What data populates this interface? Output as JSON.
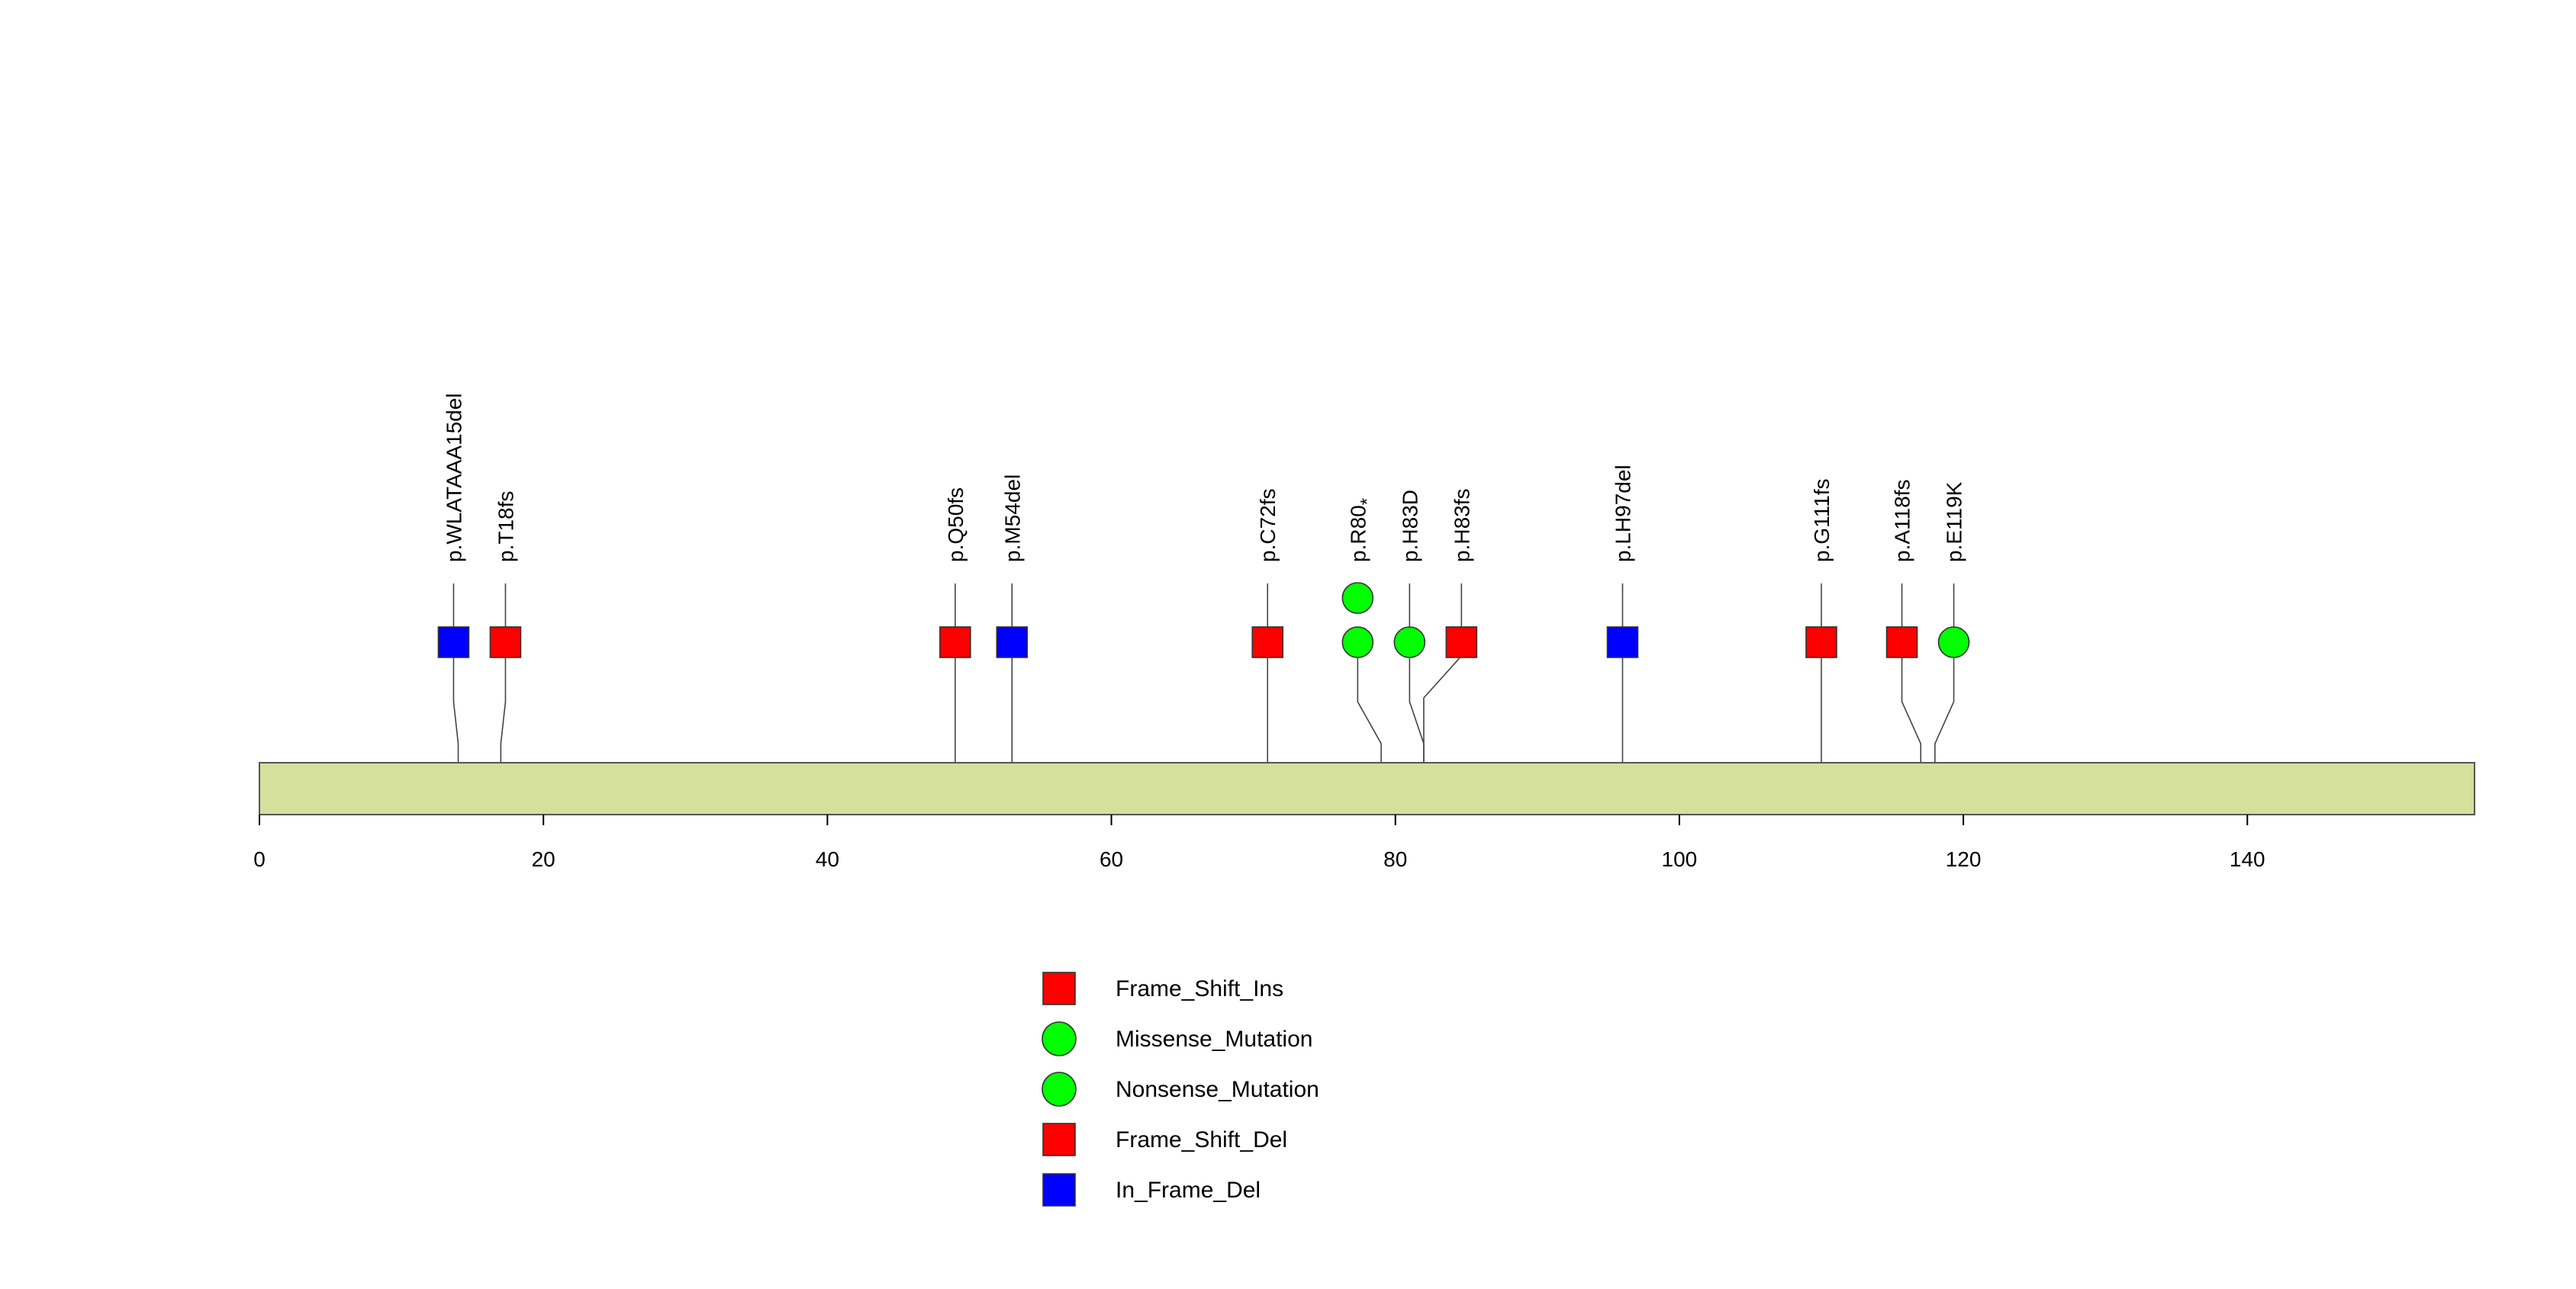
{
  "chart_data": {
    "type": "lollipop",
    "protein_length": 156,
    "xlim": [
      0,
      156
    ],
    "x_ticks": [
      0,
      20,
      40,
      60,
      80,
      100,
      120,
      140
    ],
    "x_tick_labels": [
      "0",
      "20",
      "40",
      "60",
      "80",
      "100",
      "120",
      "140"
    ],
    "domain_color": "#d4e09b",
    "mutations": [
      {
        "label": "p.WLATAAA15del",
        "position": 14,
        "class": "In_Frame_Del",
        "count": 1
      },
      {
        "label": "p.T18fs",
        "position": 17,
        "class": "Frame_Shift_Del",
        "count": 1
      },
      {
        "label": "p.Q50fs",
        "position": 49,
        "class": "Frame_Shift_Del",
        "count": 1
      },
      {
        "label": "p.M54del",
        "position": 53,
        "class": "In_Frame_Del",
        "count": 1
      },
      {
        "label": "p.C72fs",
        "position": 71,
        "class": "Frame_Shift_Del",
        "count": 1
      },
      {
        "label": "p.R80",
        "label_suffix": "*",
        "position": 79,
        "class": "Nonsense_Mutation",
        "count": 2
      },
      {
        "label": "p.H83D",
        "position": 82,
        "class": "Missense_Mutation",
        "count": 1
      },
      {
        "label": "p.H83fs",
        "position": 82,
        "class": "Frame_Shift_Del",
        "count": 1
      },
      {
        "label": "p.LH97del",
        "position": 96,
        "class": "In_Frame_Del",
        "count": 1
      },
      {
        "label": "p.G111fs",
        "position": 110,
        "class": "Frame_Shift_Del",
        "count": 1
      },
      {
        "label": "p.A118fs",
        "position": 117,
        "class": "Frame_Shift_Del",
        "count": 1
      },
      {
        "label": "p.E119K",
        "position": 118,
        "class": "Missense_Mutation",
        "count": 1
      }
    ],
    "legend": [
      {
        "label": "Frame_Shift_Ins",
        "shape": "square",
        "color": "#ff0000"
      },
      {
        "label": "Missense_Mutation",
        "shape": "circle",
        "color": "#00ff00"
      },
      {
        "label": "Nonsense_Mutation",
        "shape": "circle",
        "color": "#00ff00"
      },
      {
        "label": "Frame_Shift_Del",
        "shape": "square",
        "color": "#ff0000"
      },
      {
        "label": "In_Frame_Del",
        "shape": "square",
        "color": "#0000ff"
      }
    ],
    "class_styles": {
      "Frame_Shift_Ins": {
        "shape": "square",
        "color": "#ff0000"
      },
      "Missense_Mutation": {
        "shape": "circle",
        "color": "#00ff00"
      },
      "Nonsense_Mutation": {
        "shape": "circle",
        "color": "#00ff00"
      },
      "Frame_Shift_Del": {
        "shape": "square",
        "color": "#ff0000"
      },
      "In_Frame_Del": {
        "shape": "square",
        "color": "#0000ff"
      }
    }
  }
}
